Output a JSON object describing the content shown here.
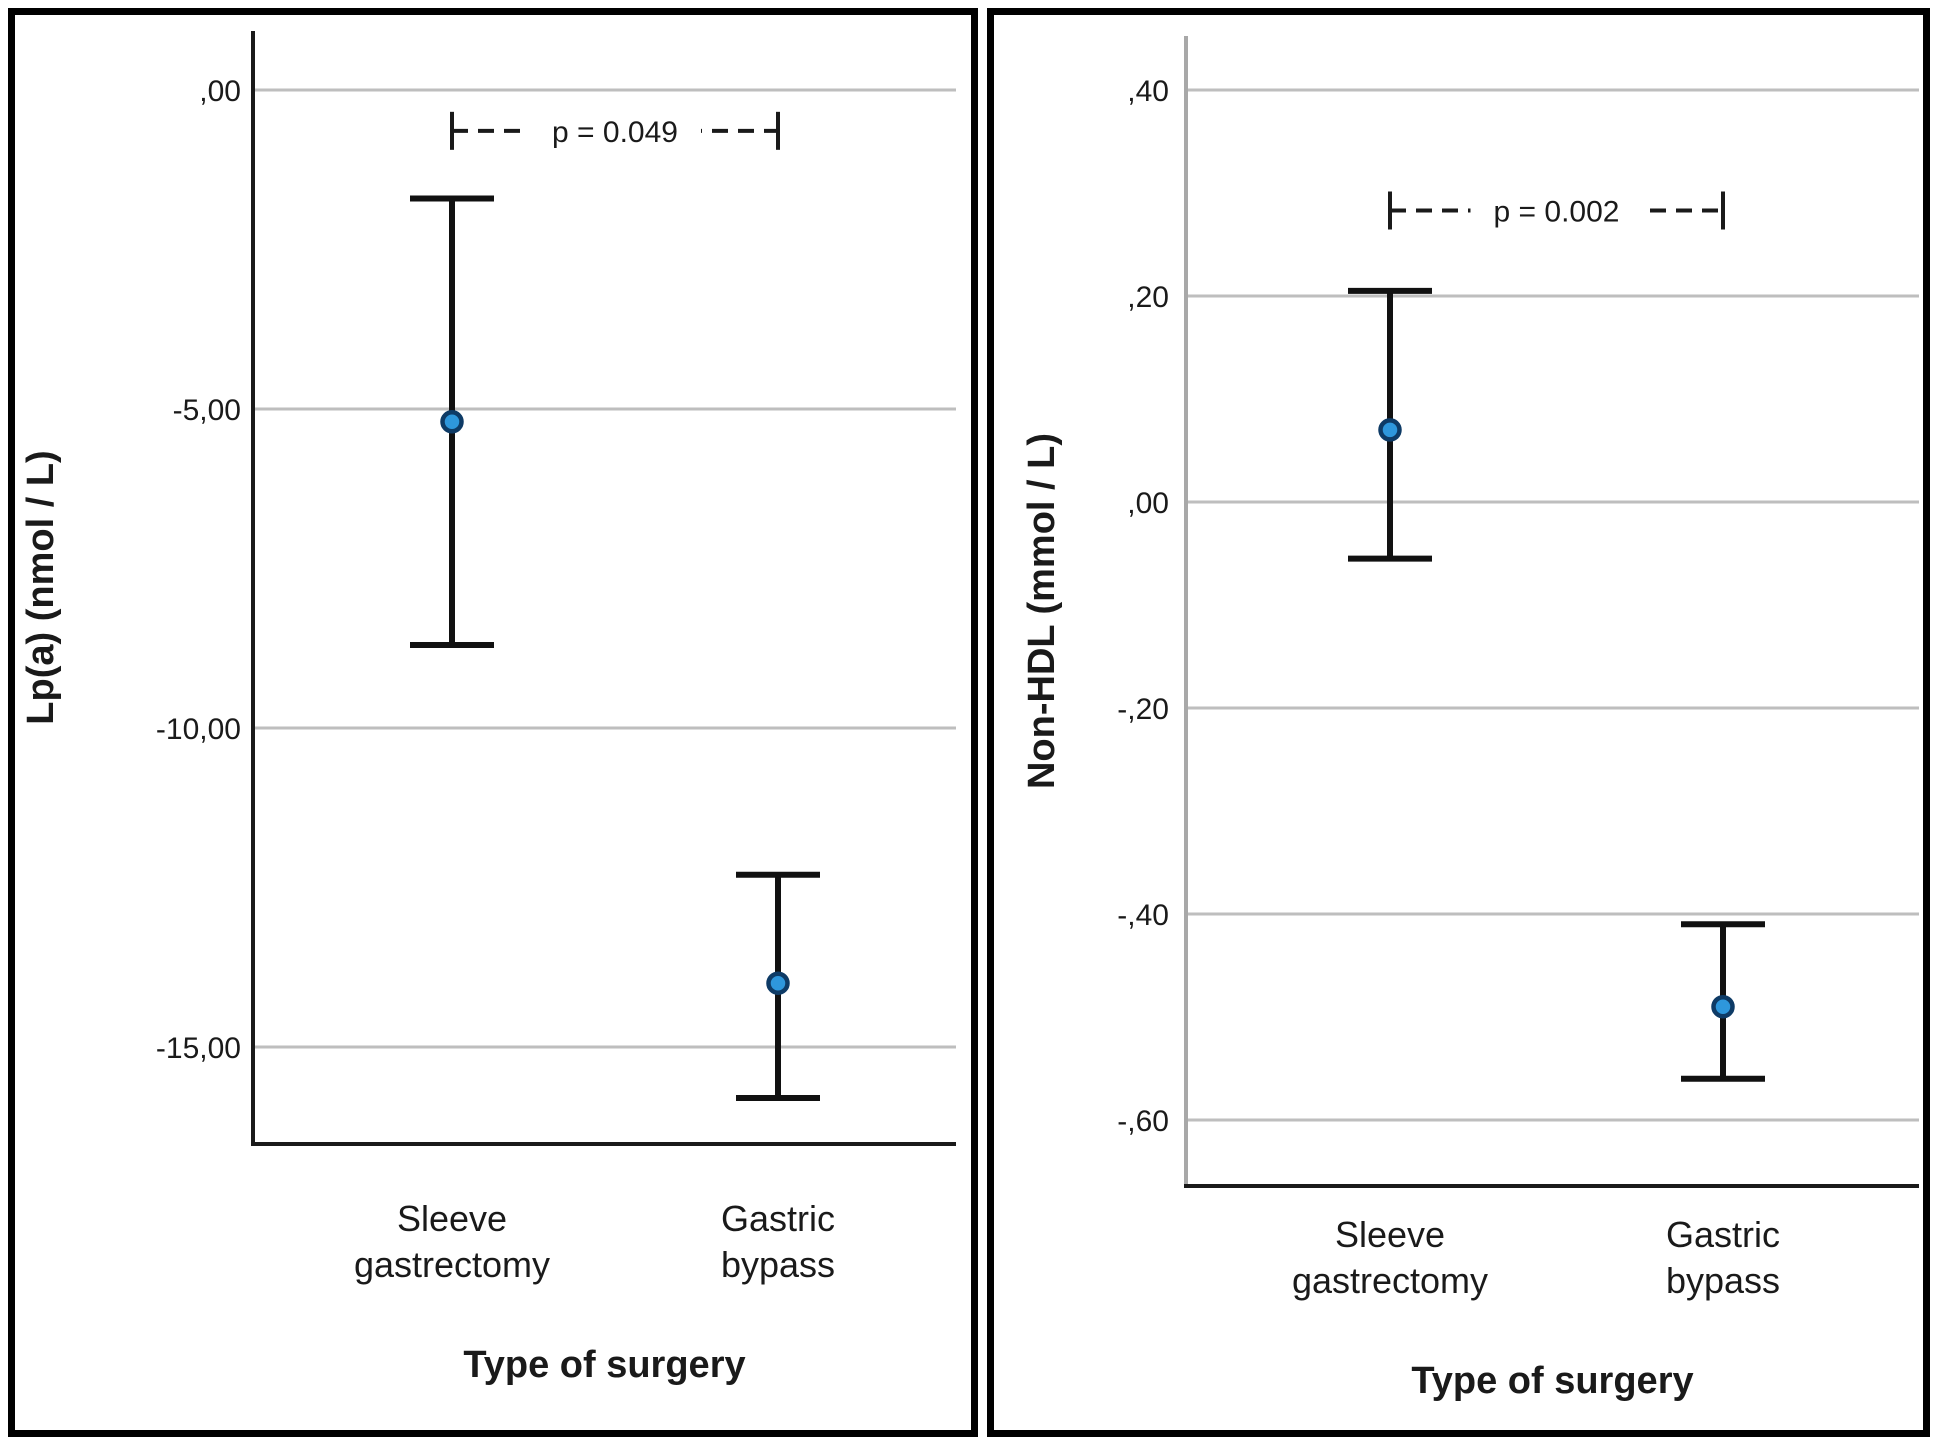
{
  "figure": {
    "description": "Two error-bar charts comparing change after sleeve gastrectomy vs gastric bypass"
  },
  "chart_data": [
    {
      "type": "errorbar",
      "title": "",
      "xlabel": "Type of surgery",
      "ylabel": "Lp(a) (nmol / L)",
      "categories": [
        "Sleeve gastrectomy",
        "Gastric bypass"
      ],
      "category_lines": [
        [
          "Sleeve",
          "gastrectomy"
        ],
        [
          "Gastric",
          "bypass"
        ]
      ],
      "points": [
        {
          "category": "Sleeve gastrectomy",
          "mean": -5.2,
          "ci_high": -1.7,
          "ci_low": -8.7
        },
        {
          "category": "Gastric bypass",
          "mean": -14.0,
          "ci_high": -12.3,
          "ci_low": -15.8
        }
      ],
      "p_annotation": {
        "text": "p = 0.049",
        "y_value": -0.64
      },
      "yticks": [
        {
          "value": 0,
          "label": ",00"
        },
        {
          "value": -5,
          "label": "-5,00"
        },
        {
          "value": -10,
          "label": "-10,00"
        },
        {
          "value": -15,
          "label": "-15,00"
        }
      ],
      "ylim": [
        1.0,
        -16.6
      ],
      "grid": true,
      "legend": null,
      "marker_color": "#2E97DC",
      "marker_edge_color": "#0E3B66",
      "grid_color": "#BEBEBE",
      "axis_color": "#1A1A1A"
    },
    {
      "type": "errorbar",
      "title": "",
      "xlabel": "Type of surgery",
      "ylabel": "Non-HDL (mmol / L)",
      "categories": [
        "Sleeve gastrectomy",
        "Gastric bypass"
      ],
      "category_lines": [
        [
          "Sleeve",
          "gastrectomy"
        ],
        [
          "Gastric",
          "bypass"
        ]
      ],
      "points": [
        {
          "category": "Sleeve gastrectomy",
          "mean": 0.07,
          "ci_high": 0.205,
          "ci_low": -0.055
        },
        {
          "category": "Gastric bypass",
          "mean": -0.49,
          "ci_high": -0.41,
          "ci_low": -0.56
        }
      ],
      "p_annotation": {
        "text": "p = 0.002",
        "y_value": 0.283
      },
      "yticks": [
        {
          "value": 0.4,
          "label": ",40"
        },
        {
          "value": 0.2,
          "label": ",20"
        },
        {
          "value": 0.0,
          "label": ",00"
        },
        {
          "value": -0.2,
          "label": "-,20"
        },
        {
          "value": -0.4,
          "label": "-,40"
        },
        {
          "value": -0.6,
          "label": "-,60"
        }
      ],
      "ylim": [
        0.46,
        -0.66
      ],
      "grid": true,
      "legend": null,
      "marker_color": "#2E97DC",
      "marker_edge_color": "#0E3B66",
      "grid_color": "#BEBEBE",
      "axis_color": "#1A1A1A"
    }
  ]
}
